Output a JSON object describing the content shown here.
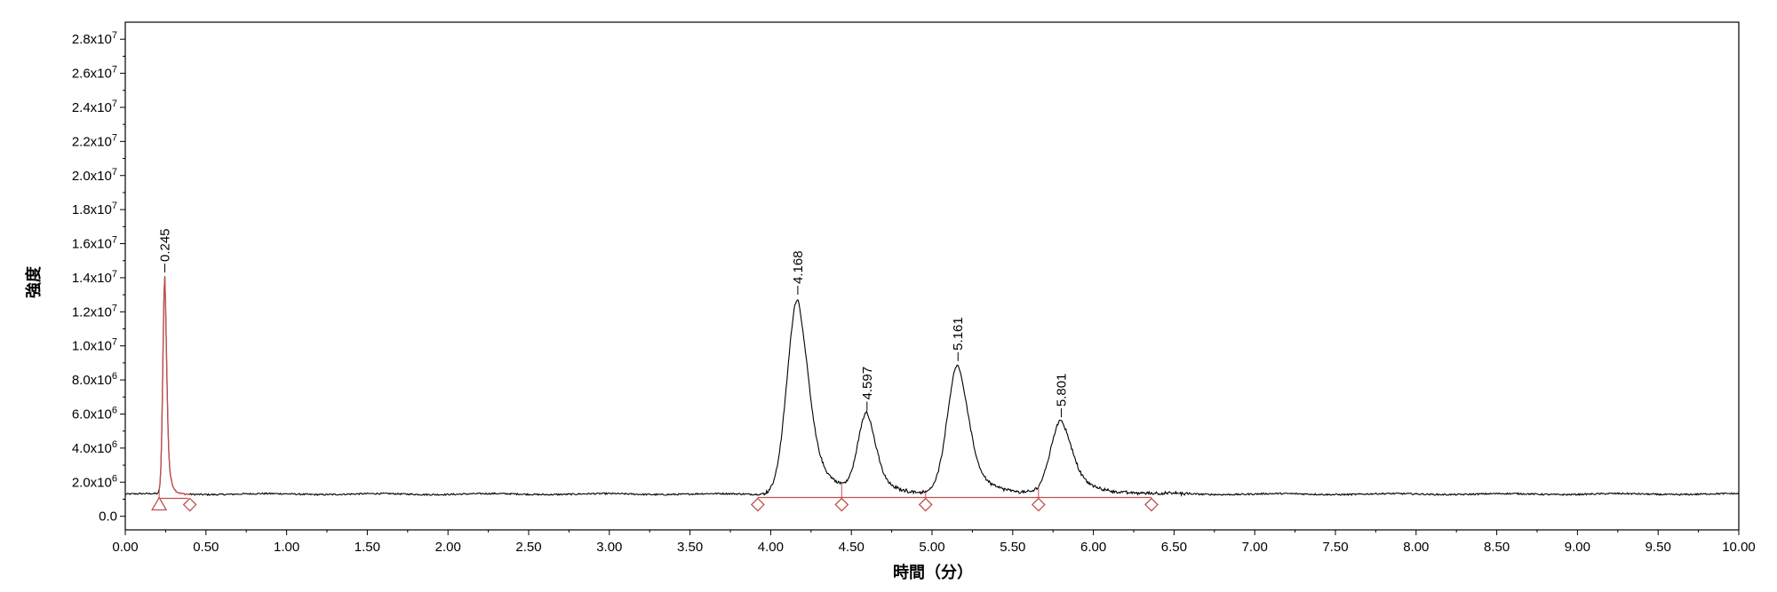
{
  "chart_data": {
    "type": "line",
    "title": "",
    "xlabel": "時間（分）",
    "ylabel": "強度",
    "xlim": [
      0,
      10
    ],
    "ylim": [
      -800000,
      29000000
    ],
    "x_ticks": [
      "0.00",
      "0.50",
      "1.00",
      "1.50",
      "2.00",
      "2.50",
      "3.00",
      "3.50",
      "4.00",
      "4.50",
      "5.00",
      "5.50",
      "6.00",
      "6.50",
      "7.00",
      "7.50",
      "8.00",
      "8.50",
      "9.00",
      "9.50",
      "10.00"
    ],
    "y_ticks": [
      {
        "value": 0,
        "mant": "0.0",
        "exp": ""
      },
      {
        "value": 2000000,
        "mant": "2.0x10",
        "exp": "6"
      },
      {
        "value": 4000000,
        "mant": "4.0x10",
        "exp": "6"
      },
      {
        "value": 6000000,
        "mant": "6.0x10",
        "exp": "6"
      },
      {
        "value": 8000000,
        "mant": "8.0x10",
        "exp": "6"
      },
      {
        "value": 10000000,
        "mant": "1.0x10",
        "exp": "7"
      },
      {
        "value": 12000000,
        "mant": "1.2x10",
        "exp": "7"
      },
      {
        "value": 14000000,
        "mant": "1.4x10",
        "exp": "7"
      },
      {
        "value": 16000000,
        "mant": "1.6x10",
        "exp": "7"
      },
      {
        "value": 18000000,
        "mant": "1.8x10",
        "exp": "7"
      },
      {
        "value": 20000000,
        "mant": "2.0x10",
        "exp": "7"
      },
      {
        "value": 22000000,
        "mant": "2.2x10",
        "exp": "7"
      },
      {
        "value": 24000000,
        "mant": "2.4x10",
        "exp": "7"
      },
      {
        "value": 26000000,
        "mant": "2.6x10",
        "exp": "7"
      },
      {
        "value": 28000000,
        "mant": "2.8x10",
        "exp": "7"
      }
    ],
    "baseline": 1300000,
    "series": [
      {
        "color": "#000000",
        "peaks": [
          {
            "rt": 4.168,
            "label": "4.168",
            "height": 11500000,
            "sigma": 0.065,
            "tail": 0.12
          },
          {
            "rt": 4.597,
            "label": "4.597",
            "height": 4700000,
            "sigma": 0.055,
            "tail": 0.1
          },
          {
            "rt": 5.161,
            "label": "5.161",
            "height": 7600000,
            "sigma": 0.065,
            "tail": 0.12
          },
          {
            "rt": 5.801,
            "label": "5.801",
            "height": 4300000,
            "sigma": 0.065,
            "tail": 0.14
          }
        ]
      },
      {
        "color": "#c0504d",
        "peaks": [
          {
            "rt": 0.245,
            "label": "0.245",
            "height": 12800000,
            "sigma": 0.012,
            "tail": 0.02
          }
        ]
      }
    ],
    "integration": {
      "color": "#c0504d",
      "lines": [
        {
          "x1": 0.21,
          "x2": 0.39,
          "y": 1050000
        },
        {
          "x1": 3.92,
          "x2": 6.36,
          "y": 1100000
        }
      ],
      "markers": [
        {
          "x": 0.21,
          "shape": "triangle"
        },
        {
          "x": 0.4,
          "shape": "diamond"
        },
        {
          "x": 3.92,
          "shape": "diamond"
        },
        {
          "x": 4.44,
          "shape": "diamond"
        },
        {
          "x": 4.96,
          "shape": "diamond"
        },
        {
          "x": 5.66,
          "shape": "diamond"
        },
        {
          "x": 6.36,
          "shape": "diamond"
        }
      ]
    }
  }
}
